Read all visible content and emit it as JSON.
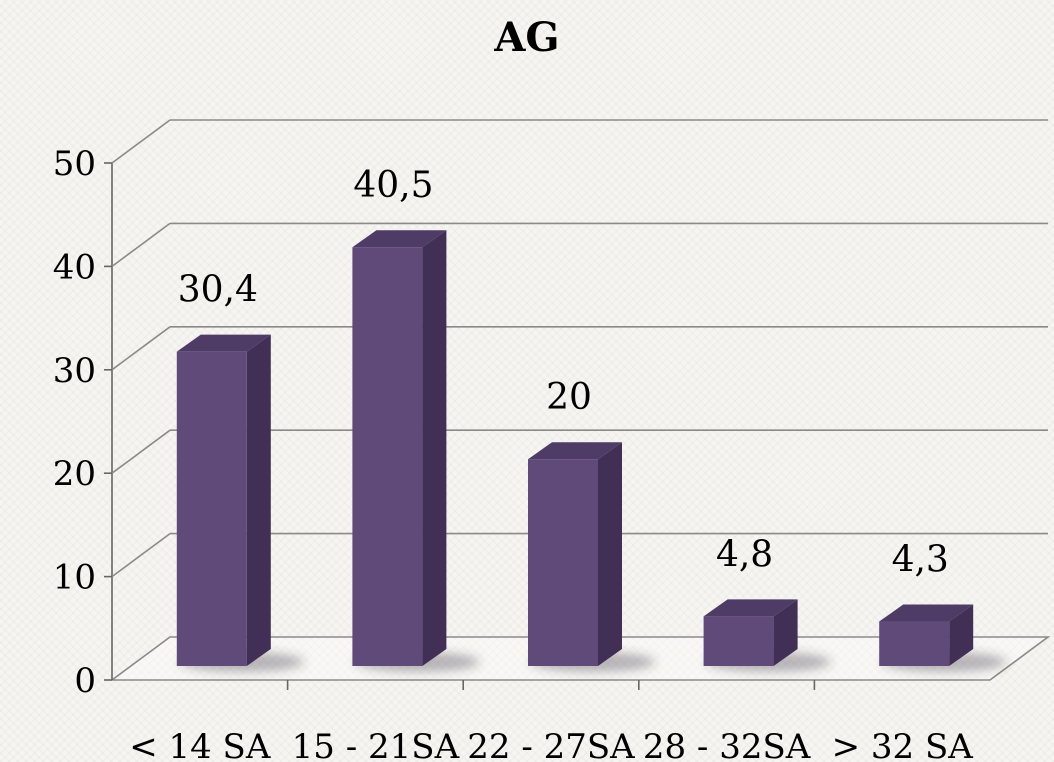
{
  "chart_data": {
    "type": "bar",
    "title": "AG",
    "categories": [
      "< 14 SA",
      "15 - 21SA",
      "22 - 27SA",
      "28 - 32SA",
      "> 32 SA"
    ],
    "values": [
      30.4,
      40.5,
      20,
      4.8,
      4.3
    ],
    "data_labels": [
      "30,4",
      "40,5",
      "20",
      "4,8",
      "4,3"
    ],
    "y_ticks": [
      "0",
      "10",
      "20",
      "30",
      "40",
      "50"
    ],
    "ylim": [
      0,
      50
    ],
    "xlabel": "",
    "ylabel": "",
    "grid": true,
    "legend": "none",
    "colors": {
      "bar_front": "#5f4a7a",
      "bar_side": "#412f55",
      "bar_top": "#4e3b66",
      "grid": "#8a8a8a",
      "axis": "#666666",
      "text": "#000000"
    }
  }
}
